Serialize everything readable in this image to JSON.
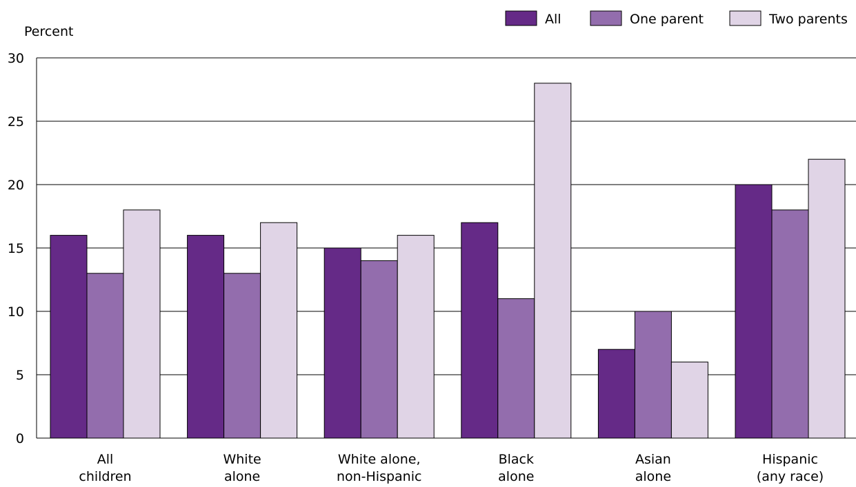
{
  "chart_data": {
    "type": "bar",
    "title": "",
    "xlabel": "",
    "ylabel": "Percent",
    "ylim": [
      0,
      30
    ],
    "yticks": [
      0,
      5,
      10,
      15,
      20,
      25,
      30
    ],
    "grid": true,
    "legend_position": "top-right",
    "categories": [
      [
        "All",
        "children"
      ],
      [
        "White",
        "alone"
      ],
      [
        "White alone,",
        "non-Hispanic"
      ],
      [
        "Black",
        "alone"
      ],
      [
        "Asian",
        "alone"
      ],
      [
        "Hispanic",
        "(any race)"
      ]
    ],
    "series": [
      {
        "name": "All",
        "color": "#652a87",
        "values": [
          16,
          16,
          15,
          17,
          7,
          20
        ]
      },
      {
        "name": "One parent",
        "color": "#936dad",
        "values": [
          13,
          13,
          14,
          11,
          10,
          18
        ]
      },
      {
        "name": "Two parents",
        "color": "#e0d4e6",
        "values": [
          18,
          17,
          16,
          28,
          6,
          22
        ]
      }
    ]
  }
}
